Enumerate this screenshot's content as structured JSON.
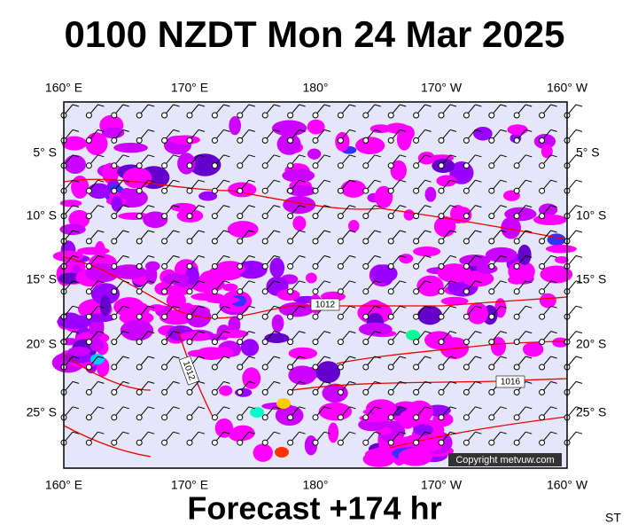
{
  "header": {
    "title": "0100 NZDT Mon 24 Mar 2025"
  },
  "map": {
    "top_labels": [
      "160° E",
      "170° E",
      "180°",
      "170° W",
      "160° W"
    ],
    "bottom_labels": [
      "160° E",
      "170° E",
      "180°",
      "170° W",
      "160° W"
    ],
    "left_labels": [
      "5° S",
      "10° S",
      "15° S",
      "20° S",
      "25° S"
    ],
    "right_labels": [
      "5° S",
      "10° S",
      "15° S",
      "20° S",
      "25° S"
    ],
    "isobar_labels": [
      "1012",
      "1012",
      "1016"
    ],
    "copyright": "Copyright metvuw.com"
  },
  "footer": {
    "forecast": "Forecast +174 hr",
    "code": "ST"
  }
}
